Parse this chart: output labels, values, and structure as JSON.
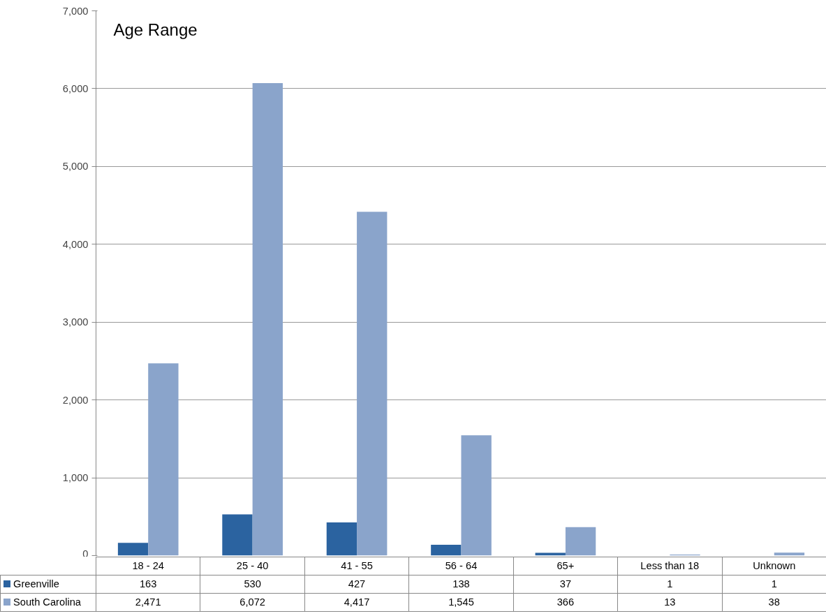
{
  "chart_data": {
    "type": "bar",
    "title": "Age Range",
    "categories": [
      "18 - 24",
      "25 - 40",
      "41 - 55",
      "56 - 64",
      "65+",
      "Less than 18",
      "Unknown"
    ],
    "series": [
      {
        "name": "Greenville",
        "color": "#2b63a0",
        "values": [
          163,
          530,
          427,
          138,
          37,
          1,
          1
        ],
        "value_labels": [
          "163",
          "530",
          "427",
          "138",
          "37",
          "1",
          "1"
        ]
      },
      {
        "name": "South Carolina",
        "color": "#8aa4cb",
        "values": [
          2471,
          6072,
          4417,
          1545,
          366,
          13,
          38
        ],
        "value_labels": [
          "2,471",
          "6,072",
          "4,417",
          "1,545",
          "366",
          "13",
          "38"
        ]
      }
    ],
    "ylim": [
      0,
      7000
    ],
    "yticks": [
      {
        "value": 0,
        "label": "0"
      },
      {
        "value": 1000,
        "label": "1,000"
      },
      {
        "value": 2000,
        "label": "2,000"
      },
      {
        "value": 3000,
        "label": "3,000"
      },
      {
        "value": 4000,
        "label": "4,000"
      },
      {
        "value": 5000,
        "label": "5,000"
      },
      {
        "value": 6000,
        "label": "6,000"
      },
      {
        "value": 7000,
        "label": "7,000"
      }
    ],
    "grid": "y",
    "legend": "bottom"
  }
}
